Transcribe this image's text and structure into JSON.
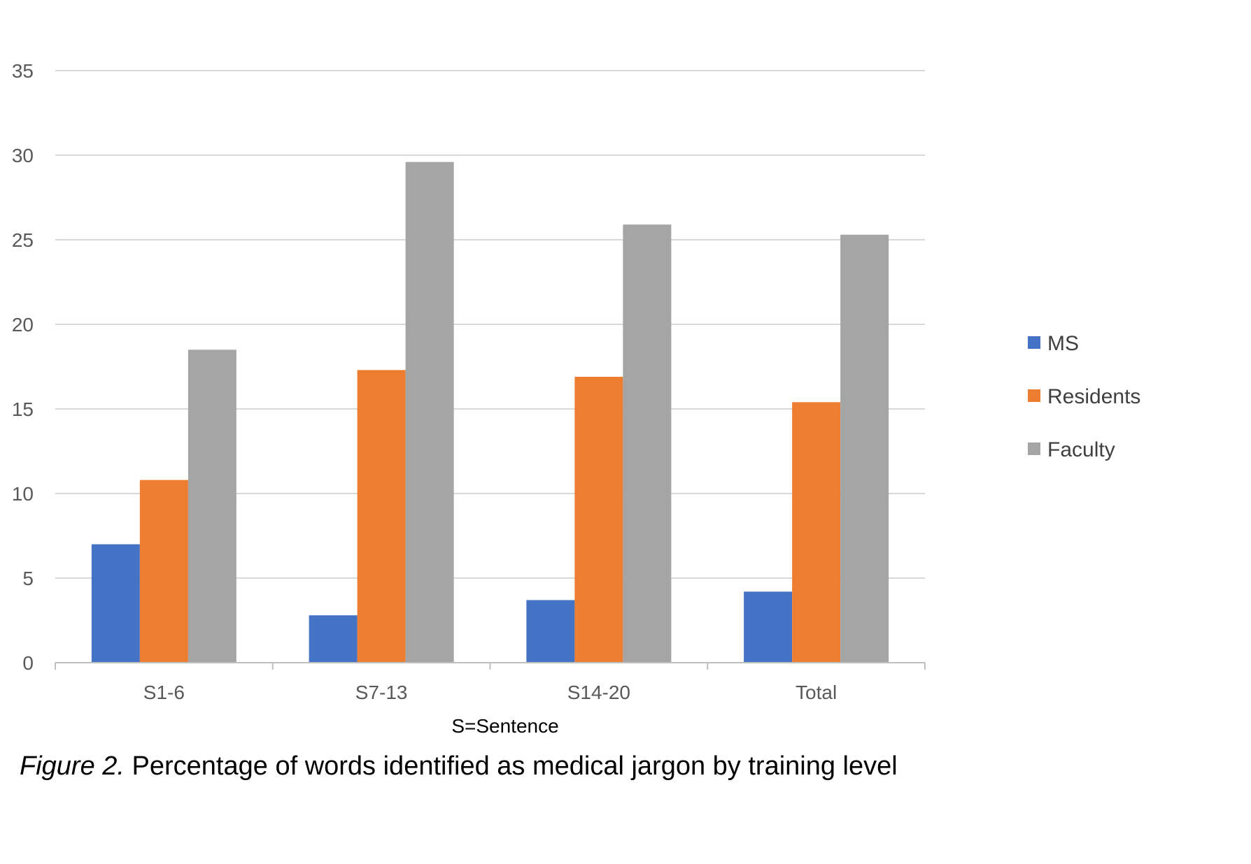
{
  "chart_data": {
    "type": "bar",
    "categories": [
      "S1-6",
      "S7-13",
      "S14-20",
      "Total"
    ],
    "series": [
      {
        "name": "MS",
        "values": [
          7.0,
          2.8,
          3.7,
          4.2
        ],
        "color": "#4472C4"
      },
      {
        "name": "Residents",
        "values": [
          10.8,
          17.3,
          16.9,
          15.4
        ],
        "color": "#ED7D31"
      },
      {
        "name": "Faculty",
        "values": [
          18.5,
          29.6,
          25.9,
          25.3
        ],
        "color": "#A5A5A5"
      }
    ],
    "xlabel": "S=Sentence",
    "ylabel": "",
    "ylim": [
      0,
      35
    ],
    "yticks": [
      0,
      5,
      10,
      15,
      20,
      25,
      30,
      35
    ],
    "grid": true,
    "legend_position": "right"
  },
  "caption": {
    "label": "Figure 2.",
    "text": " Percentage of words identified as medical jargon by training level"
  }
}
